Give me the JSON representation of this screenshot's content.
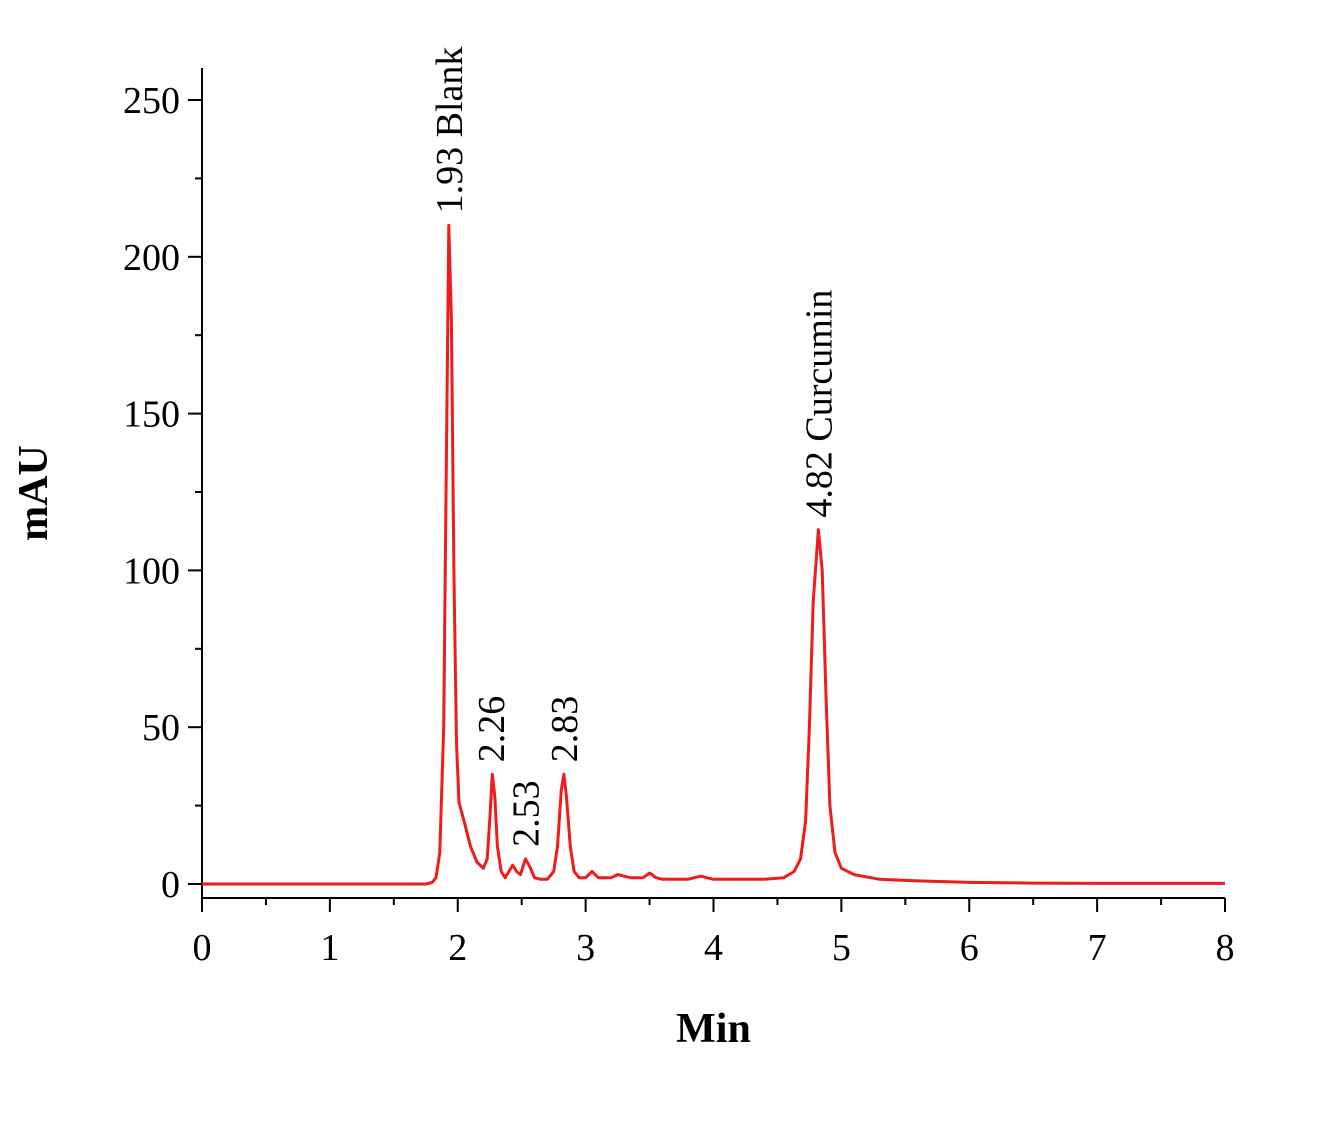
{
  "chart_data": {
    "type": "line",
    "title": "",
    "xlabel": "Min",
    "ylabel": "mAU",
    "xlim": [
      0,
      8
    ],
    "ylim": [
      -5,
      260
    ],
    "x_ticks": [
      0,
      1,
      2,
      3,
      4,
      5,
      6,
      7,
      8
    ],
    "y_ticks": [
      0,
      50,
      100,
      150,
      200,
      250
    ],
    "grid": false,
    "series": [
      {
        "color": "#ee1c1c",
        "points": [
          [
            0,
            0
          ],
          [
            0.5,
            0
          ],
          [
            1.0,
            0
          ],
          [
            1.5,
            0
          ],
          [
            1.75,
            0
          ],
          [
            1.8,
            0.5
          ],
          [
            1.83,
            2
          ],
          [
            1.86,
            10
          ],
          [
            1.89,
            50
          ],
          [
            1.91,
            130
          ],
          [
            1.93,
            210
          ],
          [
            1.95,
            180
          ],
          [
            1.97,
            100
          ],
          [
            1.99,
            45
          ],
          [
            2.01,
            26
          ],
          [
            2.05,
            20
          ],
          [
            2.1,
            12
          ],
          [
            2.15,
            7
          ],
          [
            2.2,
            5
          ],
          [
            2.23,
            8
          ],
          [
            2.25,
            20
          ],
          [
            2.27,
            35
          ],
          [
            2.29,
            28
          ],
          [
            2.31,
            12
          ],
          [
            2.34,
            4
          ],
          [
            2.37,
            2
          ],
          [
            2.4,
            4
          ],
          [
            2.43,
            6
          ],
          [
            2.46,
            4
          ],
          [
            2.49,
            3
          ],
          [
            2.53,
            8
          ],
          [
            2.57,
            5
          ],
          [
            2.6,
            2
          ],
          [
            2.65,
            1.5
          ],
          [
            2.7,
            1.5
          ],
          [
            2.75,
            4
          ],
          [
            2.78,
            12
          ],
          [
            2.81,
            30
          ],
          [
            2.83,
            35
          ],
          [
            2.85,
            28
          ],
          [
            2.88,
            12
          ],
          [
            2.91,
            4
          ],
          [
            2.95,
            2
          ],
          [
            3.0,
            2
          ],
          [
            3.05,
            4
          ],
          [
            3.1,
            2
          ],
          [
            3.2,
            2
          ],
          [
            3.25,
            3
          ],
          [
            3.35,
            2
          ],
          [
            3.45,
            2
          ],
          [
            3.5,
            3.5
          ],
          [
            3.55,
            2
          ],
          [
            3.6,
            1.5
          ],
          [
            3.7,
            1.5
          ],
          [
            3.8,
            1.5
          ],
          [
            3.9,
            2.5
          ],
          [
            4.0,
            1.5
          ],
          [
            4.2,
            1.5
          ],
          [
            4.4,
            1.5
          ],
          [
            4.55,
            2
          ],
          [
            4.63,
            4
          ],
          [
            4.68,
            8
          ],
          [
            4.72,
            20
          ],
          [
            4.75,
            50
          ],
          [
            4.78,
            90
          ],
          [
            4.82,
            113
          ],
          [
            4.85,
            100
          ],
          [
            4.88,
            60
          ],
          [
            4.91,
            25
          ],
          [
            4.95,
            10
          ],
          [
            5.0,
            5
          ],
          [
            5.1,
            3
          ],
          [
            5.3,
            1.5
          ],
          [
            5.6,
            1
          ],
          [
            6.0,
            0.5
          ],
          [
            6.5,
            0.3
          ],
          [
            7.0,
            0.2
          ],
          [
            8.0,
            0.2
          ]
        ]
      }
    ],
    "annotations": [
      {
        "text": "1.93 Blank",
        "x": 1.93,
        "y": 210
      },
      {
        "text": "2.26",
        "x": 2.26,
        "y": 35
      },
      {
        "text": "2.53",
        "x": 2.53,
        "y": 8
      },
      {
        "text": "2.83",
        "x": 2.83,
        "y": 35
      },
      {
        "text": "4.82 Curcumin",
        "x": 4.82,
        "y": 113
      }
    ]
  }
}
